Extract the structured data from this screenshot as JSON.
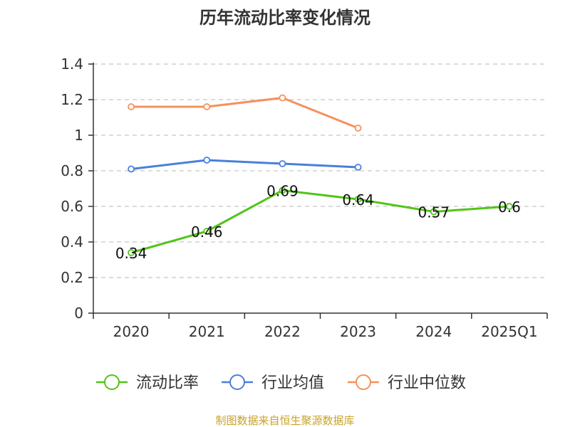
{
  "chart_data": {
    "type": "line",
    "title": "历年流动比率变化情况",
    "categories": [
      "2020",
      "2021",
      "2022",
      "2023",
      "2024",
      "2025Q1"
    ],
    "ylim": [
      0,
      1.4
    ],
    "yticks": [
      "0",
      "0.2",
      "0.4",
      "0.6",
      "0.8",
      "1",
      "1.2",
      "1.4"
    ],
    "grid": true,
    "legend_position": "bottom",
    "series": [
      {
        "name": "流动比率",
        "color": "#52c41a",
        "values": [
          0.34,
          0.46,
          0.69,
          0.64,
          0.57,
          0.6
        ],
        "labels": [
          "0.34",
          "0.46",
          "0.69",
          "0.64",
          "0.57",
          "0.6"
        ]
      },
      {
        "name": "行业均值",
        "color": "#4a7fdb",
        "values": [
          0.81,
          0.86,
          0.84,
          0.82,
          null,
          null
        ]
      },
      {
        "name": "行业中位数",
        "color": "#f5915a",
        "values": [
          1.16,
          1.16,
          1.21,
          1.04,
          null,
          null
        ]
      }
    ]
  },
  "source": "制图数据来自恒生聚源数据库"
}
